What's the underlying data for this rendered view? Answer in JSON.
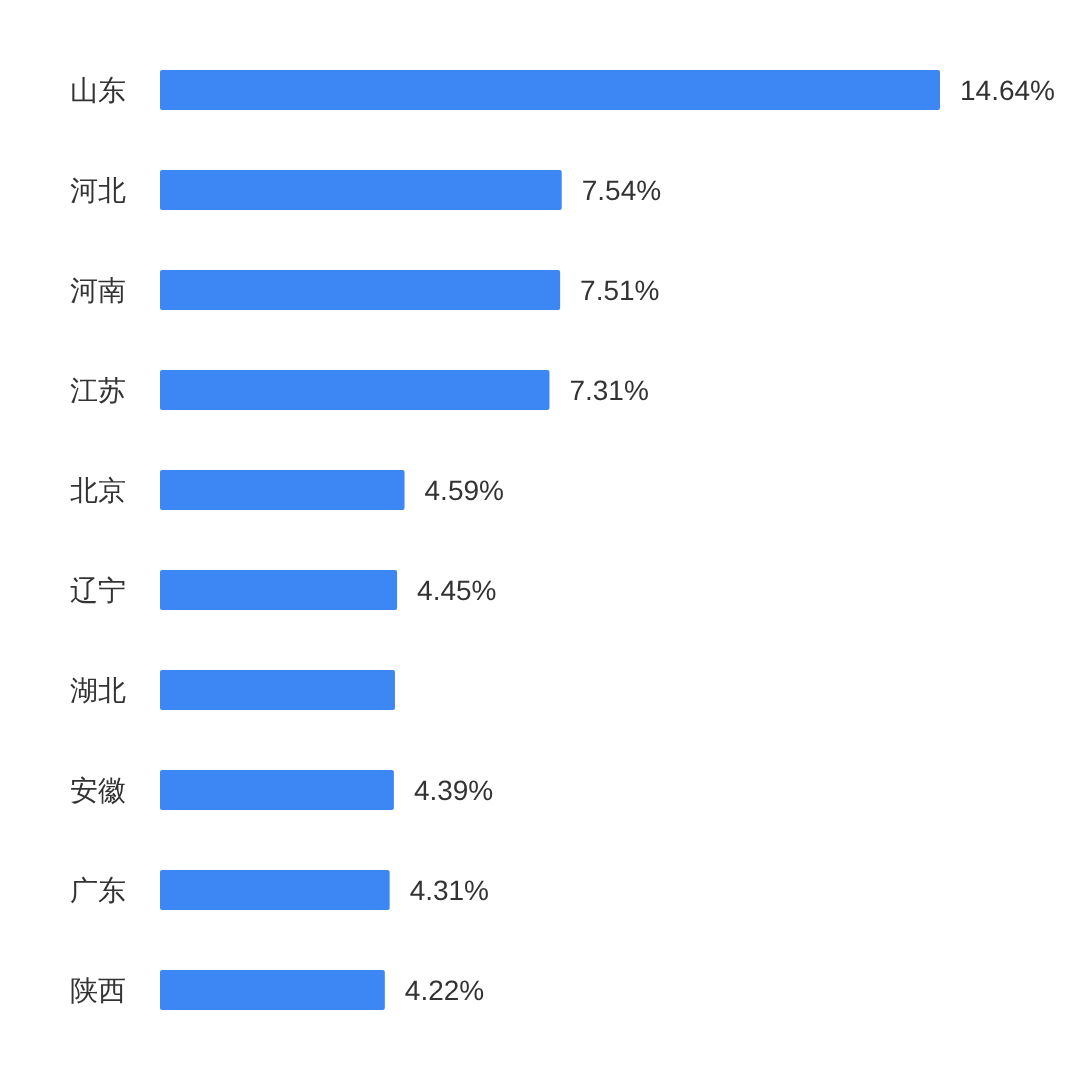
{
  "chart_data": {
    "type": "bar",
    "orientation": "horizontal",
    "categories": [
      "山东",
      "河北",
      "河南",
      "江苏",
      "北京",
      "辽宁",
      "湖北",
      "安徽",
      "广东",
      "陕西"
    ],
    "values": [
      14.64,
      7.54,
      7.51,
      7.31,
      4.59,
      4.45,
      4.41,
      4.39,
      4.31,
      4.22
    ],
    "value_labels": [
      "14.64%",
      "7.54%",
      "7.51%",
      "7.31%",
      "4.59%",
      "4.45%",
      null,
      "4.39%",
      "4.31%",
      "4.22%"
    ],
    "color": "#3d87f5"
  }
}
